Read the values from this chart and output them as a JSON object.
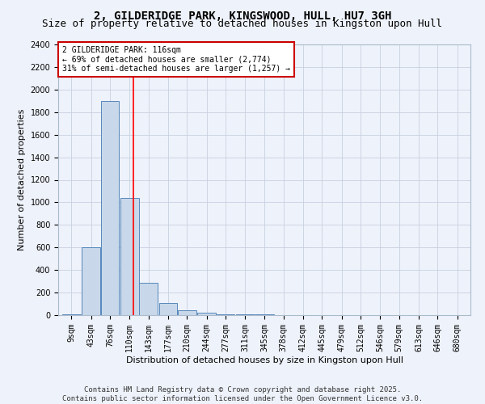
{
  "title": "2, GILDERIDGE PARK, KINGSWOOD, HULL, HU7 3GH",
  "subtitle": "Size of property relative to detached houses in Kingston upon Hull",
  "xlabel": "Distribution of detached houses by size in Kingston upon Hull",
  "ylabel": "Number of detached properties",
  "bins": [
    9,
    43,
    76,
    110,
    143,
    177,
    210,
    244,
    277,
    311,
    345,
    378,
    412,
    445,
    479,
    512,
    546,
    579,
    613,
    646,
    680
  ],
  "bar_heights": [
    10,
    600,
    1900,
    1040,
    290,
    110,
    45,
    20,
    10,
    5,
    5,
    3,
    3,
    3,
    3,
    2,
    2,
    2,
    2,
    2
  ],
  "bar_color": "#c8d8ea",
  "bar_edge_color": "#5588bb",
  "grid_color": "#c8d0e0",
  "background_color": "#eef2fa",
  "red_line_x": 116,
  "ylim": [
    0,
    2400
  ],
  "yticks": [
    0,
    200,
    400,
    600,
    800,
    1000,
    1200,
    1400,
    1600,
    1800,
    2000,
    2200,
    2400
  ],
  "annotation_text": "2 GILDERIDGE PARK: 116sqm\n← 69% of detached houses are smaller (2,774)\n31% of semi-detached houses are larger (1,257) →",
  "annotation_box_color": "#ffffff",
  "annotation_box_edge_color": "#cc0000",
  "footer_text": "Contains HM Land Registry data © Crown copyright and database right 2025.\nContains public sector information licensed under the Open Government Licence v3.0.",
  "title_fontsize": 10,
  "subtitle_fontsize": 9,
  "tick_fontsize": 7,
  "label_fontsize": 8,
  "ylabel_fontsize": 8,
  "annot_fontsize": 7,
  "footer_fontsize": 6.5
}
